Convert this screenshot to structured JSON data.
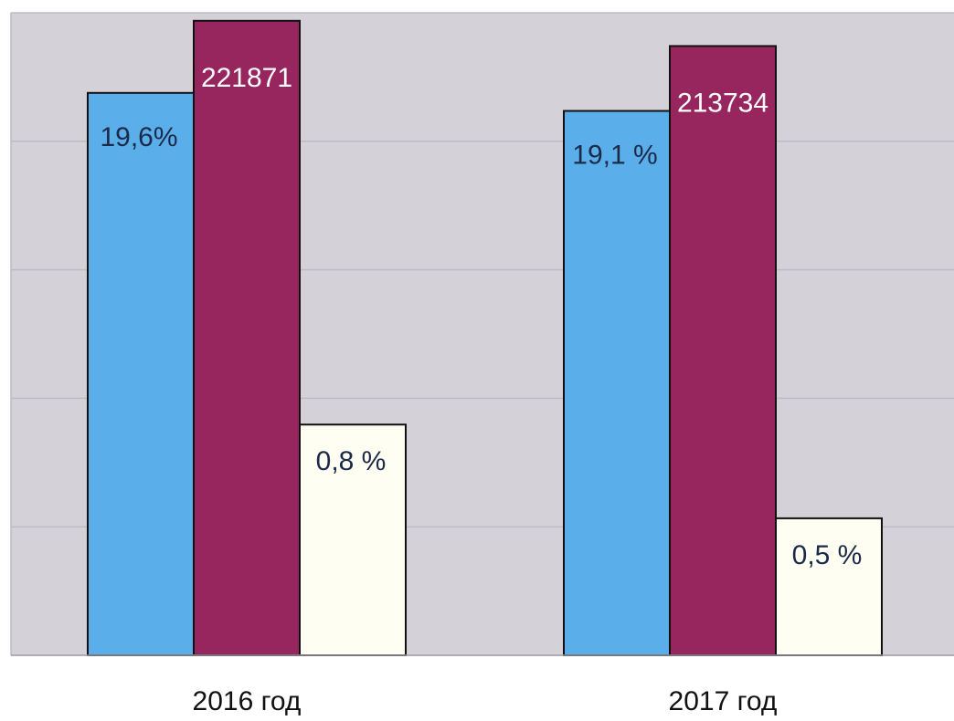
{
  "chart_data": {
    "type": "bar",
    "categories": [
      "2016 год",
      "2017 год"
    ],
    "series": [
      {
        "values": [
          19.6,
          19.1
        ],
        "labels": [
          "19,6%",
          "19,1 %"
        ],
        "color": "#5aaeea",
        "relative_height": [
          0.78,
          0.755
        ]
      },
      {
        "values": [
          221871,
          213734
        ],
        "labels": [
          "221871",
          "213734"
        ],
        "color": "#97265e",
        "relative_height": [
          0.88,
          0.845
        ]
      },
      {
        "values": [
          0.8,
          0.5
        ],
        "labels": [
          "0,8 %",
          "0,5 %"
        ],
        "color": "#fefef2",
        "relative_height": [
          0.32,
          0.19
        ]
      }
    ],
    "title": "",
    "xlabel": "",
    "ylabel": "",
    "grid": true,
    "legend": "none",
    "colors": {
      "plot_background": "#d4d2d8",
      "gridline": "#bdbbc3",
      "bar_outline": "#111111",
      "label_dark": "#1c2a4a",
      "label_light": "#ffffff"
    }
  }
}
